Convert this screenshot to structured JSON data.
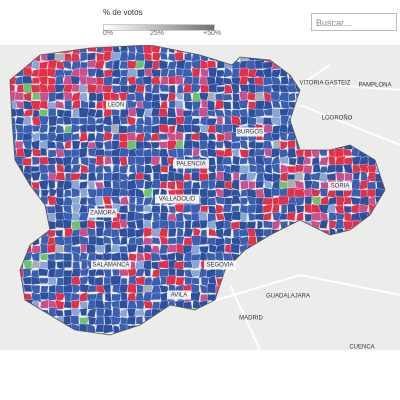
{
  "legend": {
    "title": "% de votos",
    "labels": [
      "0%",
      "25%",
      "+50%"
    ]
  },
  "search": {
    "placeholder": "Buscar..."
  },
  "map": {
    "region_labels": [
      "LEON",
      "BURGOS",
      "PALENCIA",
      "VALLADOLID",
      "ZAMORA",
      "SORIA",
      "SALAMANCA",
      "SEGOVIA",
      "AVILA"
    ],
    "outside_labels": [
      "VITORIA GASTEIZ",
      "PAMPLONA",
      "LOGROÑO",
      "GUADALAJARA",
      "MADRID",
      "CUENCA"
    ]
  }
}
